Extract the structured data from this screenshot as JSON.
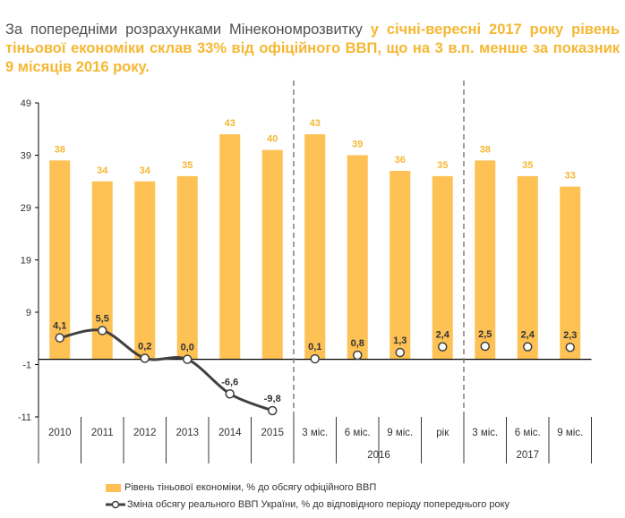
{
  "headline": {
    "plain": "За попередніми розрахунками Мінекономрозвитку ",
    "highlight": "у січні-вересні 2017 року рівень тіньової економіки склав 33% від офіційного ВВП, що на 3 в.п. менше за показник 9 місяців 2016 року."
  },
  "colors": {
    "bar": "#fdc154",
    "bar_label": "#f6b733",
    "line": "#404040",
    "marker_fill": "#ffffff",
    "axis": "#000000",
    "separator": "#7f7f7f",
    "text": "#333333"
  },
  "chart_data": {
    "type": "bar+line",
    "categories": [
      "2010",
      "2011",
      "2012",
      "2013",
      "2014",
      "2015",
      "3 міс.",
      "6 міс.",
      "9 міс.",
      "рік",
      "3 міс.",
      "6 міс.",
      "9 міс."
    ],
    "group_labels": [
      {
        "label": "2016",
        "from": 6,
        "to": 9
      },
      {
        "label": "2017",
        "from": 10,
        "to": 12
      }
    ],
    "series": [
      {
        "name": "Рівень тіньової економіки, % до обсягу офіційного ВВП",
        "type": "bar",
        "values": [
          38,
          34,
          34,
          35,
          43,
          40,
          43,
          39,
          36,
          35,
          38,
          35,
          33
        ],
        "labels": [
          "38",
          "34",
          "34",
          "35",
          "43",
          "40",
          "43",
          "39",
          "36",
          "35",
          "38",
          "35",
          "33"
        ]
      },
      {
        "name": "Зміна обсягу реального ВВП України, % до відповідного періоду попереднього року",
        "type": "line",
        "values": [
          4.1,
          5.5,
          0.2,
          0.0,
          -6.6,
          -9.8,
          0.1,
          0.8,
          1.3,
          2.4,
          2.5,
          2.4,
          2.3
        ],
        "labels": [
          "4,1",
          "5,5",
          "0,2",
          "0,0",
          "-6,6",
          "-9,8",
          "0,1",
          "0,8",
          "1,3",
          "2,4",
          "2,5",
          "2,4",
          "2,3"
        ],
        "connected_through_index": 5
      }
    ],
    "y_ticks": [
      49,
      39,
      29,
      19,
      9,
      -1,
      -11
    ],
    "ylim": [
      -11,
      49
    ],
    "grid": false,
    "legend_position": "bottom-left"
  }
}
